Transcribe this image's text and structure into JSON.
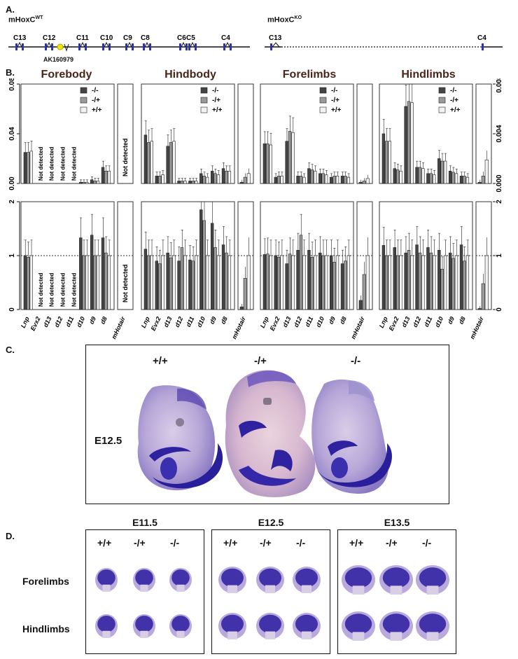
{
  "panel_a": {
    "label": "A.",
    "wt_title": "mHoxC",
    "wt_sup": "WT",
    "ko_title": "mHoxC",
    "ko_sup": "KO",
    "wt_genes": [
      "C13",
      "C12",
      "C11",
      "C10",
      "C9",
      "C8",
      "C6",
      "C5",
      "C4"
    ],
    "ko_genes": [
      "C13",
      "C4"
    ],
    "marker": "AK160979",
    "marker_color": "#f2e400",
    "exon_color": "#2b35a8"
  },
  "panel_b": {
    "label": "B.",
    "tissues": [
      "Forebody",
      "Hindbody",
      "Forelimbs",
      "Hindlimbs"
    ],
    "legend": [
      "-/-",
      "-/+",
      "+/+"
    ],
    "colors": {
      "ko": "#444444",
      "het": "#9a9a9a",
      "wt": "#f2f2f2"
    },
    "categories": [
      "Lnp",
      "Evx2",
      "d13",
      "d12",
      "d11",
      "d10",
      "d9",
      "d8"
    ],
    "extra_category": "mHotair",
    "not_detected": "Not detected",
    "top_left_ticks": [
      "0.00",
      "0.04",
      "0.08"
    ],
    "top_right_ticks": [
      "0.000",
      "0.004",
      "0.008"
    ],
    "bottom_ticks": [
      "0",
      "1",
      "2"
    ]
  },
  "chart_data": [
    {
      "type": "bar",
      "tissue": "Forebody",
      "row": "absolute expression",
      "ylim": [
        0,
        0.08
      ],
      "categories": [
        "Lnp",
        "Evx2",
        "d13",
        "d12",
        "d11",
        "d10",
        "d9",
        "d8"
      ],
      "series": [
        {
          "name": "-/-",
          "values": [
            0.025,
            null,
            null,
            null,
            null,
            0.001,
            0.003,
            0.013
          ]
        },
        {
          "name": "-/+",
          "values": [
            0.025,
            null,
            null,
            null,
            null,
            0.001,
            0.002,
            0.01
          ]
        },
        {
          "name": "+/+",
          "values": [
            0.026,
            null,
            null,
            null,
            null,
            0.001,
            0.002,
            0.01
          ]
        }
      ],
      "mHotair": {
        "status": "Not detected"
      }
    },
    {
      "type": "bar",
      "tissue": "Hindbody",
      "row": "absolute expression",
      "ylim": [
        0,
        0.08
      ],
      "categories": [
        "Lnp",
        "Evx2",
        "d13",
        "d12",
        "d11",
        "d10",
        "d9",
        "d8"
      ],
      "series": [
        {
          "name": "-/-",
          "values": [
            0.039,
            0.006,
            0.03,
            0.002,
            0.002,
            0.008,
            0.01,
            0.012
          ]
        },
        {
          "name": "-/+",
          "values": [
            0.033,
            0.006,
            0.033,
            0.002,
            0.002,
            0.006,
            0.008,
            0.01
          ]
        },
        {
          "name": "+/+",
          "values": [
            0.034,
            0.007,
            0.034,
            0.002,
            0.002,
            0.005,
            0.007,
            0.01
          ]
        }
      ],
      "mHotair": {
        "ylim": [
          0,
          0.008
        ],
        "values": [
          0.0001,
          0.0005,
          0.0008
        ]
      }
    },
    {
      "type": "bar",
      "tissue": "Forelimbs",
      "row": "absolute expression",
      "ylim": [
        0,
        0.08
      ],
      "categories": [
        "Lnp",
        "Evx2",
        "d13",
        "d12",
        "d11",
        "d10",
        "d9",
        "d8"
      ],
      "series": [
        {
          "name": "-/-",
          "values": [
            0.032,
            0.005,
            0.034,
            0.006,
            0.012,
            0.008,
            0.005,
            0.006
          ]
        },
        {
          "name": "-/+",
          "values": [
            0.032,
            0.006,
            0.042,
            0.006,
            0.011,
            0.008,
            0.006,
            0.006
          ]
        },
        {
          "name": "+/+",
          "values": [
            0.031,
            0.006,
            0.041,
            0.005,
            0.01,
            0.007,
            0.006,
            0.005
          ]
        }
      ],
      "mHotair": {
        "ylim": [
          0,
          0.008
        ],
        "values": [
          0.0001,
          0.0002,
          0.0004
        ]
      }
    },
    {
      "type": "bar",
      "tissue": "Hindlimbs",
      "row": "absolute expression",
      "ylim": [
        0,
        0.008
      ],
      "categories": [
        "Lnp",
        "Evx2",
        "d13",
        "d12",
        "d11",
        "d10",
        "d9",
        "d8"
      ],
      "series": [
        {
          "name": "-/-",
          "values": [
            0.004,
            0.0012,
            0.0062,
            0.0013,
            0.0008,
            0.002,
            0.001,
            0.0006
          ]
        },
        {
          "name": "-/+",
          "values": [
            0.0034,
            0.0011,
            0.0066,
            0.0013,
            0.0008,
            0.0018,
            0.0009,
            0.0006
          ]
        },
        {
          "name": "+/+",
          "values": [
            0.0034,
            0.001,
            0.0065,
            0.0012,
            0.0007,
            0.0018,
            0.0008,
            0.0005
          ]
        }
      ],
      "mHotair": {
        "ylim": [
          0,
          0.008
        ],
        "values": [
          0.0001,
          0.0006,
          0.0019
        ]
      }
    },
    {
      "type": "bar",
      "tissue": "Forebody",
      "row": "relative expression",
      "ylim": [
        0,
        2
      ],
      "categories": [
        "Lnp",
        "Evx2",
        "d13",
        "d12",
        "d11",
        "d10",
        "d9",
        "d8"
      ],
      "series": [
        {
          "name": "-/-",
          "values": [
            1.0,
            null,
            null,
            null,
            null,
            1.33,
            1.38,
            1.33
          ]
        },
        {
          "name": "-/+",
          "values": [
            0.97,
            null,
            null,
            null,
            null,
            1.0,
            1.0,
            1.05
          ]
        },
        {
          "name": "+/+",
          "values": [
            1.0,
            null,
            null,
            null,
            null,
            1.0,
            1.0,
            1.0
          ]
        }
      ],
      "mHotair": {
        "status": "Not detected"
      }
    },
    {
      "type": "bar",
      "tissue": "Hindbody",
      "row": "relative expression",
      "ylim": [
        0,
        2
      ],
      "categories": [
        "Lnp",
        "Evx2",
        "d13",
        "d12",
        "d11",
        "d10",
        "d9",
        "d8"
      ],
      "series": [
        {
          "name": "-/-",
          "values": [
            1.12,
            0.9,
            1.05,
            0.9,
            0.92,
            1.85,
            1.6,
            1.2
          ]
        },
        {
          "name": "-/+",
          "values": [
            1.0,
            0.85,
            0.96,
            1.15,
            0.9,
            1.65,
            1.15,
            1.05
          ]
        },
        {
          "name": "+/+",
          "values": [
            1.0,
            1.0,
            1.0,
            1.0,
            1.0,
            1.0,
            1.0,
            1.0
          ]
        }
      ],
      "mHotair": {
        "values": [
          0.05,
          0.58,
          1.0
        ]
      }
    },
    {
      "type": "bar",
      "tissue": "Forelimbs",
      "row": "relative expression",
      "ylim": [
        0,
        2
      ],
      "categories": [
        "Lnp",
        "Evx2",
        "d13",
        "d12",
        "d11",
        "d10",
        "d9",
        "d8"
      ],
      "series": [
        {
          "name": "-/-",
          "values": [
            1.02,
            1.0,
            0.85,
            1.1,
            1.1,
            1.05,
            1.0,
            0.85
          ]
        },
        {
          "name": "-/+",
          "values": [
            1.03,
            0.97,
            1.03,
            1.38,
            0.97,
            1.0,
            0.88,
            0.9
          ]
        },
        {
          "name": "+/+",
          "values": [
            1.0,
            1.0,
            1.0,
            1.0,
            1.0,
            1.0,
            1.0,
            1.0
          ]
        }
      ],
      "mHotair": {
        "values": [
          0.17,
          0.65,
          1.0
        ]
      }
    },
    {
      "type": "bar",
      "tissue": "Hindlimbs",
      "row": "relative expression",
      "ylim": [
        0,
        2
      ],
      "categories": [
        "Lnp",
        "Evx2",
        "d13",
        "d12",
        "d11",
        "d10",
        "d9",
        "d8"
      ],
      "series": [
        {
          "name": "-/-",
          "values": [
            1.19,
            1.15,
            1.05,
            1.2,
            1.15,
            1.1,
            1.05,
            1.2
          ]
        },
        {
          "name": "-/+",
          "values": [
            1.0,
            1.0,
            1.1,
            1.05,
            1.05,
            0.75,
            0.95,
            0.9
          ]
        },
        {
          "name": "+/+",
          "values": [
            1.0,
            1.0,
            1.0,
            1.0,
            1.0,
            1.0,
            1.0,
            1.0
          ]
        }
      ],
      "mHotair": {
        "values": [
          0.02,
          0.48,
          1.0
        ]
      }
    }
  ],
  "panel_c": {
    "label": "C.",
    "stage": "E12.5",
    "genotypes": [
      "+/+",
      "-/+",
      "-/-"
    ]
  },
  "panel_d": {
    "label": "D.",
    "stages": [
      "E11.5",
      "E12.5",
      "E13.5"
    ],
    "genotypes": [
      "+/+",
      "-/+",
      "-/-"
    ],
    "rows": [
      "Forelimbs",
      "Hindlimbs"
    ]
  }
}
